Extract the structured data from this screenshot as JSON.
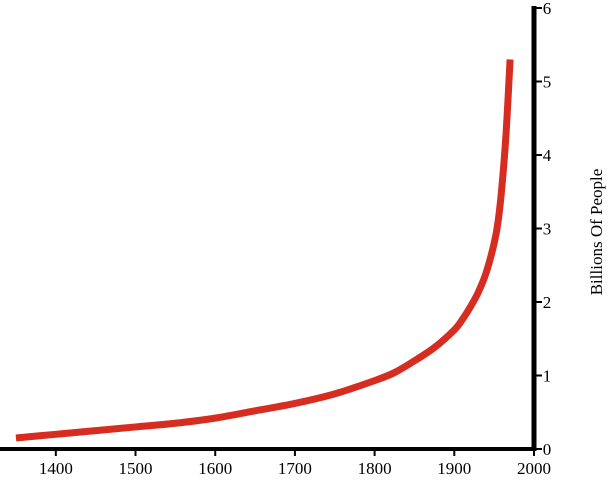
{
  "chart_data": {
    "type": "line",
    "title": "",
    "xlabel": "",
    "ylabel": "Billions Of People",
    "xlim": [
      1340,
      2000
    ],
    "ylim": [
      0,
      6
    ],
    "x_ticks": [
      1400,
      1500,
      1600,
      1700,
      1800,
      1900,
      2000
    ],
    "y_ticks": [
      0,
      1,
      2,
      3,
      4,
      5,
      6
    ],
    "y_axis_position": "right",
    "grid": false,
    "legend": "none",
    "series": [
      {
        "color": "#d62d20",
        "x": [
          1350,
          1400,
          1450,
          1500,
          1550,
          1600,
          1650,
          1700,
          1750,
          1800,
          1825,
          1850,
          1875,
          1900,
          1910,
          1920,
          1930,
          1940,
          1950,
          1955,
          1960,
          1965,
          1970
        ],
        "y": [
          0.15,
          0.2,
          0.25,
          0.3,
          0.35,
          0.42,
          0.52,
          0.62,
          0.75,
          0.93,
          1.04,
          1.2,
          1.38,
          1.62,
          1.76,
          1.93,
          2.13,
          2.4,
          2.8,
          3.1,
          3.6,
          4.3,
          5.3
        ]
      }
    ]
  }
}
